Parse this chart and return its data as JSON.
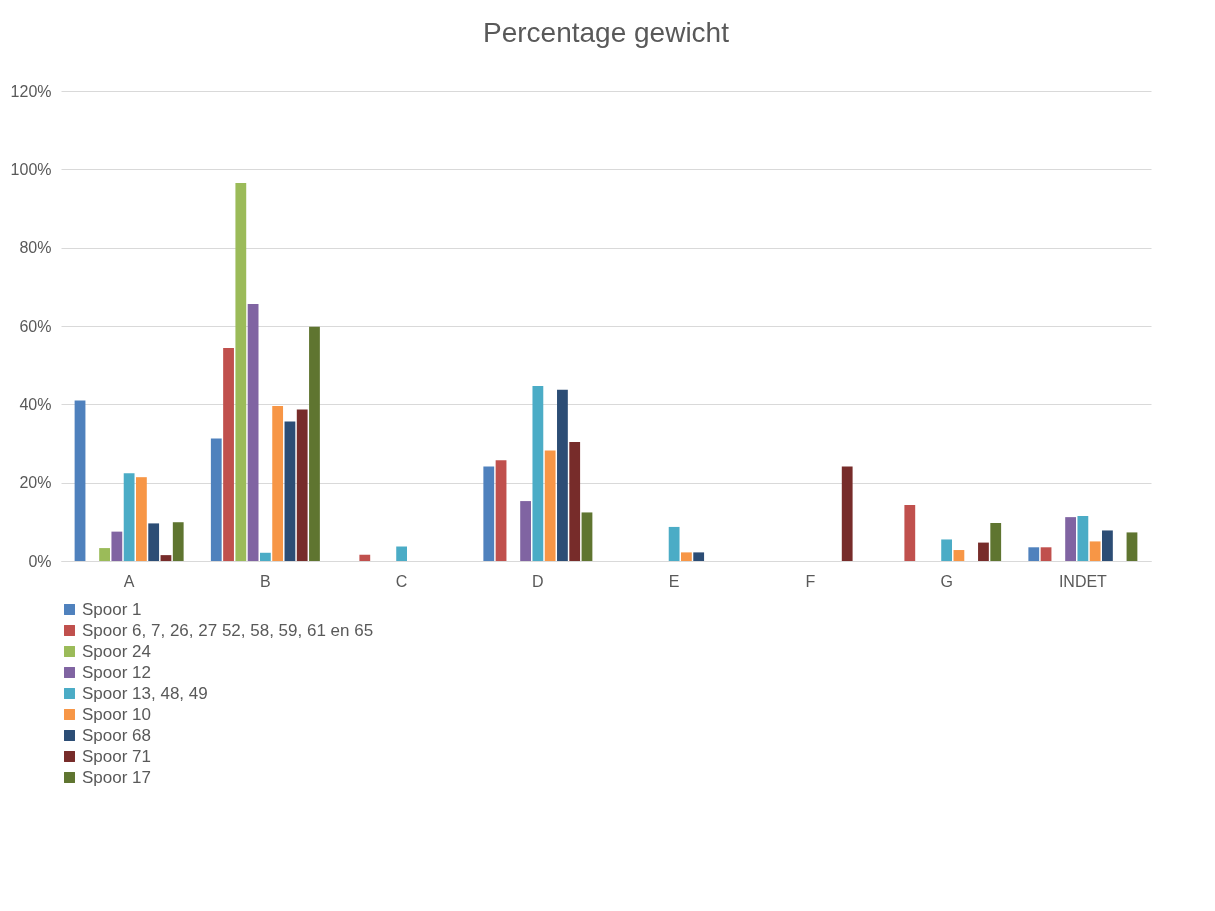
{
  "chart_data": {
    "type": "bar",
    "title": "Percentage gewicht",
    "categories": [
      "A",
      "B",
      "C",
      "D",
      "E",
      "F",
      "G",
      "INDET"
    ],
    "series": [
      {
        "name": "Spoor 1",
        "color": "#4f81bd",
        "values": [
          41,
          31.3,
          null,
          24.1,
          null,
          null,
          null,
          3.5
        ]
      },
      {
        "name": "Spoor 6, 7, 26, 27 52, 58, 59, 61 en 65",
        "color": "#c0504d",
        "values": [
          null,
          54.4,
          1.6,
          25.7,
          null,
          null,
          14.3,
          3.5
        ]
      },
      {
        "name": "Spoor 24",
        "color": "#9bbb59",
        "values": [
          3.3,
          96.5,
          null,
          null,
          null,
          null,
          null,
          null
        ]
      },
      {
        "name": "Spoor 12",
        "color": "#8064a2",
        "values": [
          7.5,
          65.6,
          null,
          15.3,
          null,
          null,
          null,
          11.2
        ]
      },
      {
        "name": "Spoor 13, 48, 49",
        "color": "#4bacc6",
        "values": [
          22.4,
          2.1,
          3.7,
          44.7,
          8.7,
          null,
          5.5,
          11.5
        ]
      },
      {
        "name": "Spoor 10",
        "color": "#f79646",
        "values": [
          21.4,
          39.6,
          null,
          28.2,
          2.2,
          null,
          2.8,
          5.0
        ]
      },
      {
        "name": "Spoor 68",
        "color": "#2c4d75",
        "values": [
          9.6,
          35.6,
          null,
          43.7,
          2.2,
          null,
          null,
          7.8
        ]
      },
      {
        "name": "Spoor 71",
        "color": "#772c2a",
        "values": [
          1.5,
          38.7,
          null,
          30.4,
          null,
          24.1,
          4.7,
          null
        ]
      },
      {
        "name": "Spoor 17",
        "color": "#5f7530",
        "values": [
          9.9,
          59.8,
          null,
          12.4,
          null,
          null,
          9.7,
          7.3
        ]
      }
    ],
    "ylim": [
      0,
      120
    ],
    "yticks": [
      {
        "value": 0,
        "label": "0%"
      },
      {
        "value": 20,
        "label": "20%"
      },
      {
        "value": 40,
        "label": "40%"
      },
      {
        "value": 60,
        "label": "60%"
      },
      {
        "value": 80,
        "label": "80%"
      },
      {
        "value": 100,
        "label": "100%"
      },
      {
        "value": 120,
        "label": "120%"
      }
    ],
    "grid": "y",
    "legend": "bottom"
  }
}
